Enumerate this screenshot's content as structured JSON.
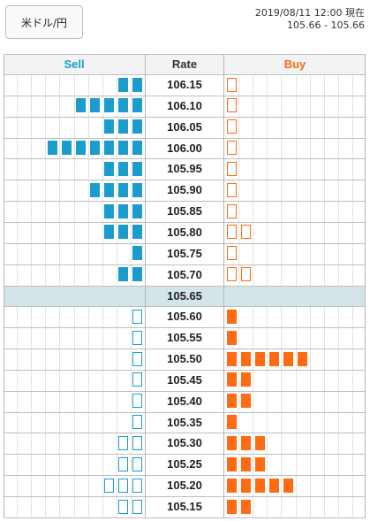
{
  "pair_button": {
    "label": "米ドル/円"
  },
  "timestamp": {
    "line1": "2019/08/11 12:00 現在",
    "line2": "105.66 - 105.66"
  },
  "headers": {
    "sell": "Sell",
    "rate": "Rate",
    "buy": "Buy"
  },
  "colors": {
    "sell": "#1a9ccc",
    "buy": "#ff6a13",
    "current_row": "#d4e5ea"
  },
  "current_rate": "105.65",
  "rows": [
    {
      "rate": "106.15",
      "sell": 2,
      "sell_style": "filled",
      "buy": 1,
      "buy_style": "outline"
    },
    {
      "rate": "106.10",
      "sell": 5,
      "sell_style": "filled",
      "buy": 1,
      "buy_style": "outline"
    },
    {
      "rate": "106.05",
      "sell": 3,
      "sell_style": "filled",
      "buy": 1,
      "buy_style": "outline"
    },
    {
      "rate": "106.00",
      "sell": 7,
      "sell_style": "filled",
      "buy": 1,
      "buy_style": "outline"
    },
    {
      "rate": "105.95",
      "sell": 3,
      "sell_style": "filled",
      "buy": 1,
      "buy_style": "outline"
    },
    {
      "rate": "105.90",
      "sell": 4,
      "sell_style": "filled",
      "buy": 1,
      "buy_style": "outline"
    },
    {
      "rate": "105.85",
      "sell": 3,
      "sell_style": "filled",
      "buy": 1,
      "buy_style": "outline"
    },
    {
      "rate": "105.80",
      "sell": 3,
      "sell_style": "filled",
      "buy": 2,
      "buy_style": "outline"
    },
    {
      "rate": "105.75",
      "sell": 1,
      "sell_style": "filled",
      "buy": 1,
      "buy_style": "outline"
    },
    {
      "rate": "105.70",
      "sell": 2,
      "sell_style": "filled",
      "buy": 2,
      "buy_style": "outline"
    },
    {
      "rate": "105.65",
      "sell": 0,
      "sell_style": "none",
      "buy": 0,
      "buy_style": "none"
    },
    {
      "rate": "105.60",
      "sell": 1,
      "sell_style": "outline",
      "buy": 1,
      "buy_style": "filled"
    },
    {
      "rate": "105.55",
      "sell": 1,
      "sell_style": "outline",
      "buy": 1,
      "buy_style": "filled"
    },
    {
      "rate": "105.50",
      "sell": 1,
      "sell_style": "outline",
      "buy": 6,
      "buy_style": "filled"
    },
    {
      "rate": "105.45",
      "sell": 1,
      "sell_style": "outline",
      "buy": 2,
      "buy_style": "filled"
    },
    {
      "rate": "105.40",
      "sell": 1,
      "sell_style": "outline",
      "buy": 2,
      "buy_style": "filled"
    },
    {
      "rate": "105.35",
      "sell": 1,
      "sell_style": "outline",
      "buy": 1,
      "buy_style": "filled"
    },
    {
      "rate": "105.30",
      "sell": 2,
      "sell_style": "outline",
      "buy": 3,
      "buy_style": "filled"
    },
    {
      "rate": "105.25",
      "sell": 2,
      "sell_style": "outline",
      "buy": 3,
      "buy_style": "filled"
    },
    {
      "rate": "105.20",
      "sell": 3,
      "sell_style": "outline",
      "buy": 5,
      "buy_style": "filled"
    },
    {
      "rate": "105.15",
      "sell": 2,
      "sell_style": "outline",
      "buy": 2,
      "buy_style": "filled"
    }
  ]
}
